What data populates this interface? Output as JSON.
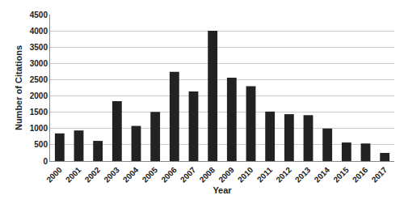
{
  "chart_data": {
    "type": "bar",
    "x_label": "Year",
    "y_label": "Number of Citations",
    "categories": [
      "2000",
      "2001",
      "2002",
      "2003",
      "2004",
      "2005",
      "2006",
      "2007",
      "2008",
      "2009",
      "2010",
      "2011",
      "2012",
      "2013",
      "2014",
      "2015",
      "2016",
      "2017"
    ],
    "values": [
      850,
      940,
      620,
      1840,
      1080,
      1510,
      2740,
      2140,
      4000,
      2560,
      2300,
      1520,
      1440,
      1410,
      1000,
      570,
      540,
      250
    ],
    "color": "#222222",
    "ylim": [
      0,
      4500
    ],
    "yticks": [
      0,
      500,
      1000,
      1500,
      2000,
      2500,
      3000,
      3500,
      4000,
      4500
    ],
    "grid": true
  }
}
